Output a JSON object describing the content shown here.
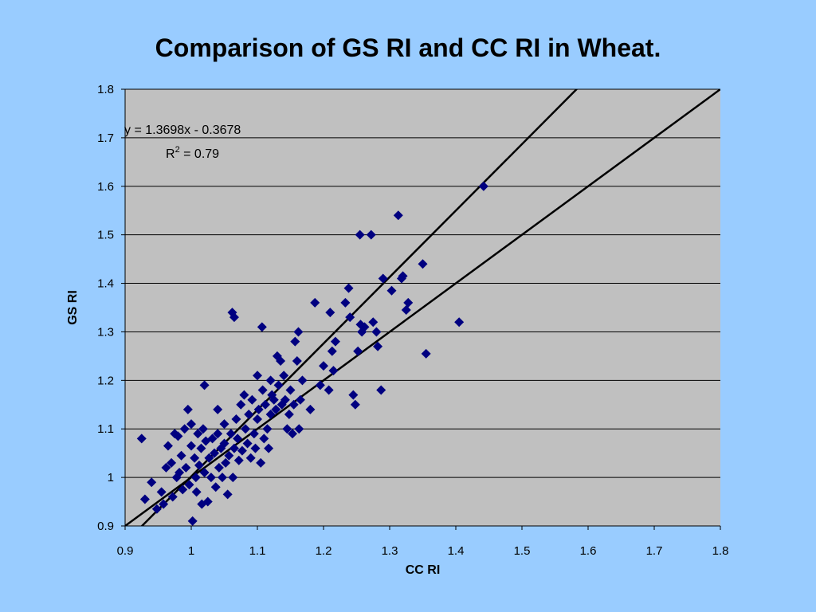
{
  "chart_data": {
    "type": "scatter",
    "title": "Comparison of GS RI and CC RI in Wheat.",
    "xlabel": "CC RI",
    "ylabel": "GS RI",
    "xlim": [
      0.9,
      1.8
    ],
    "ylim": [
      0.9,
      1.8
    ],
    "xticks": [
      "0.9",
      "1",
      "1.1",
      "1.2",
      "1.3",
      "1.4",
      "1.5",
      "1.6",
      "1.7",
      "1.8"
    ],
    "yticks": [
      "0.9",
      "1",
      "1.1",
      "1.2",
      "1.3",
      "1.4",
      "1.5",
      "1.6",
      "1.7",
      "1.8"
    ],
    "grid": "horizontal",
    "legend": "none",
    "colors": {
      "background": "#99ccff",
      "plot_area": "#c0c0c0",
      "markers": "#000080",
      "lines": "#000000",
      "gridlines": "#000000"
    },
    "annotations": {
      "equation": "y = 1.3698x - 0.3678",
      "r2_prefix": "R",
      "r2_sup": "2",
      "r2_value": " = 0.79"
    },
    "trendline": {
      "slope": 1.3698,
      "intercept": -0.3678
    },
    "identity_line": {
      "slope": 1,
      "intercept": 0
    },
    "series": [
      {
        "marker": "diamond",
        "points": [
          [
            0.925,
            1.08
          ],
          [
            0.93,
            0.955
          ],
          [
            0.94,
            0.99
          ],
          [
            0.948,
            0.935
          ],
          [
            0.955,
            0.97
          ],
          [
            0.958,
            0.945
          ],
          [
            0.962,
            1.02
          ],
          [
            0.965,
            1.065
          ],
          [
            0.97,
            1.03
          ],
          [
            0.972,
            0.96
          ],
          [
            0.975,
            1.09
          ],
          [
            0.978,
            1.0
          ],
          [
            0.98,
            1.085
          ],
          [
            0.982,
            1.01
          ],
          [
            0.985,
            1.045
          ],
          [
            0.987,
            0.975
          ],
          [
            0.99,
            1.1
          ],
          [
            0.992,
            1.02
          ],
          [
            0.995,
            1.14
          ],
          [
            0.997,
            0.985
          ],
          [
            1.0,
            1.11
          ],
          [
            1.0,
            1.065
          ],
          [
            1.002,
            0.91
          ],
          [
            1.005,
            1.04
          ],
          [
            1.007,
            1.0
          ],
          [
            1.008,
            0.97
          ],
          [
            1.01,
            1.09
          ],
          [
            1.012,
            1.025
          ],
          [
            1.015,
            1.06
          ],
          [
            1.016,
            0.945
          ],
          [
            1.018,
            1.1
          ],
          [
            1.02,
            1.19
          ],
          [
            1.02,
            1.01
          ],
          [
            1.022,
            1.075
          ],
          [
            1.025,
            0.95
          ],
          [
            1.027,
            1.04
          ],
          [
            1.03,
            1.0
          ],
          [
            1.032,
            1.08
          ],
          [
            1.035,
            1.05
          ],
          [
            1.037,
            0.98
          ],
          [
            1.04,
            1.14
          ],
          [
            1.04,
            1.09
          ],
          [
            1.042,
            1.02
          ],
          [
            1.045,
            1.06
          ],
          [
            1.047,
            1.0
          ],
          [
            1.05,
            1.11
          ],
          [
            1.05,
            1.07
          ],
          [
            1.052,
            1.03
          ],
          [
            1.055,
            0.965
          ],
          [
            1.057,
            1.045
          ],
          [
            1.06,
            1.09
          ],
          [
            1.062,
            1.34
          ],
          [
            1.063,
            1.0
          ],
          [
            1.065,
            1.33
          ],
          [
            1.065,
            1.06
          ],
          [
            1.068,
            1.12
          ],
          [
            1.07,
            1.08
          ],
          [
            1.072,
            1.035
          ],
          [
            1.075,
            1.15
          ],
          [
            1.077,
            1.055
          ],
          [
            1.08,
            1.17
          ],
          [
            1.082,
            1.1
          ],
          [
            1.085,
            1.07
          ],
          [
            1.087,
            1.13
          ],
          [
            1.09,
            1.04
          ],
          [
            1.092,
            1.16
          ],
          [
            1.095,
            1.09
          ],
          [
            1.097,
            1.06
          ],
          [
            1.1,
            1.21
          ],
          [
            1.1,
            1.12
          ],
          [
            1.102,
            1.14
          ],
          [
            1.105,
            1.03
          ],
          [
            1.107,
            1.31
          ],
          [
            1.108,
            1.18
          ],
          [
            1.11,
            1.08
          ],
          [
            1.112,
            1.15
          ],
          [
            1.115,
            1.1
          ],
          [
            1.117,
            1.06
          ],
          [
            1.12,
            1.2
          ],
          [
            1.12,
            1.13
          ],
          [
            1.122,
            1.17
          ],
          [
            1.125,
            1.16
          ],
          [
            1.128,
            1.14
          ],
          [
            1.13,
            1.25
          ],
          [
            1.132,
            1.19
          ],
          [
            1.135,
            1.24
          ],
          [
            1.137,
            1.15
          ],
          [
            1.14,
            1.21
          ],
          [
            1.142,
            1.16
          ],
          [
            1.145,
            1.1
          ],
          [
            1.148,
            1.13
          ],
          [
            1.15,
            1.18
          ],
          [
            1.153,
            1.09
          ],
          [
            1.155,
            1.15
          ],
          [
            1.157,
            1.28
          ],
          [
            1.16,
            1.24
          ],
          [
            1.162,
            1.3
          ],
          [
            1.163,
            1.1
          ],
          [
            1.165,
            1.16
          ],
          [
            1.168,
            1.2
          ],
          [
            1.18,
            1.14
          ],
          [
            1.187,
            1.36
          ],
          [
            1.195,
            1.19
          ],
          [
            1.2,
            1.23
          ],
          [
            1.208,
            1.18
          ],
          [
            1.21,
            1.34
          ],
          [
            1.213,
            1.26
          ],
          [
            1.215,
            1.22
          ],
          [
            1.218,
            1.28
          ],
          [
            1.233,
            1.36
          ],
          [
            1.238,
            1.39
          ],
          [
            1.24,
            1.33
          ],
          [
            1.245,
            1.17
          ],
          [
            1.248,
            1.15
          ],
          [
            1.252,
            1.26
          ],
          [
            1.255,
            1.5
          ],
          [
            1.256,
            1.315
          ],
          [
            1.258,
            1.3
          ],
          [
            1.262,
            1.31
          ],
          [
            1.272,
            1.5
          ],
          [
            1.275,
            1.32
          ],
          [
            1.28,
            1.3
          ],
          [
            1.282,
            1.27
          ],
          [
            1.287,
            1.18
          ],
          [
            1.29,
            1.41
          ],
          [
            1.303,
            1.385
          ],
          [
            1.313,
            1.54
          ],
          [
            1.318,
            1.41
          ],
          [
            1.32,
            1.415
          ],
          [
            1.325,
            1.345
          ],
          [
            1.328,
            1.36
          ],
          [
            1.35,
            1.44
          ],
          [
            1.355,
            1.255
          ],
          [
            1.405,
            1.32
          ],
          [
            1.442,
            1.6
          ]
        ]
      }
    ]
  }
}
